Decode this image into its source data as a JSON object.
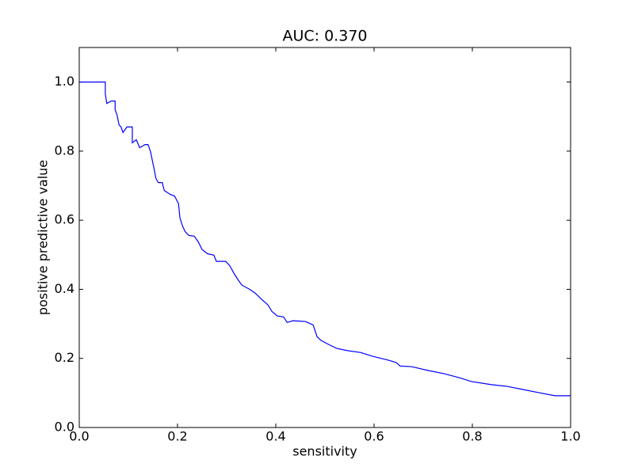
{
  "chart_data": {
    "type": "line",
    "title": "AUC: 0.370",
    "xlabel": "sensitivity",
    "ylabel": "positive predictive value",
    "xlim": [
      0,
      1
    ],
    "ylim": [
      0,
      1.1
    ],
    "xticks": [
      {
        "value": 0,
        "label": "0.0"
      },
      {
        "value": 0.2,
        "label": "0.2"
      },
      {
        "value": 0.4,
        "label": "0.4"
      },
      {
        "value": 0.6,
        "label": "0.6"
      },
      {
        "value": 0.8,
        "label": "0.8"
      },
      {
        "value": 1,
        "label": "1.0"
      }
    ],
    "yticks": [
      {
        "value": 0,
        "label": "0.0"
      },
      {
        "value": 0.2,
        "label": "0.2"
      },
      {
        "value": 0.4,
        "label": "0.4"
      },
      {
        "value": 0.6,
        "label": "0.6"
      },
      {
        "value": 0.8,
        "label": "0.8"
      },
      {
        "value": 1,
        "label": "1.0"
      }
    ],
    "color": "#0000ff",
    "x": [
      0,
      0.053,
      0.053,
      0.056,
      0.065,
      0.073,
      0.073,
      0.077,
      0.081,
      0.085,
      0.089,
      0.097,
      0.108,
      0.108,
      0.116,
      0.123,
      0.134,
      0.14,
      0.145,
      0.148,
      0.153,
      0.156,
      0.161,
      0.169,
      0.173,
      0.185,
      0.194,
      0.202,
      0.205,
      0.21,
      0.215,
      0.223,
      0.234,
      0.242,
      0.25,
      0.261,
      0.274,
      0.279,
      0.298,
      0.306,
      0.315,
      0.323,
      0.331,
      0.347,
      0.358,
      0.371,
      0.384,
      0.392,
      0.403,
      0.416,
      0.423,
      0.435,
      0.46,
      0.476,
      0.484,
      0.492,
      0.508,
      0.524,
      0.548,
      0.573,
      0.597,
      0.629,
      0.645,
      0.653,
      0.677,
      0.71,
      0.742,
      0.774,
      0.798,
      0.839,
      0.871,
      0.903,
      0.935,
      0.968,
      1.0
    ],
    "values": [
      1.0,
      1.0,
      0.966,
      0.938,
      0.945,
      0.945,
      0.92,
      0.904,
      0.876,
      0.87,
      0.854,
      0.87,
      0.87,
      0.824,
      0.833,
      0.81,
      0.819,
      0.819,
      0.799,
      0.778,
      0.744,
      0.721,
      0.709,
      0.709,
      0.686,
      0.675,
      0.67,
      0.648,
      0.606,
      0.584,
      0.568,
      0.556,
      0.554,
      0.538,
      0.515,
      0.503,
      0.499,
      0.481,
      0.481,
      0.469,
      0.446,
      0.428,
      0.412,
      0.4,
      0.389,
      0.371,
      0.355,
      0.336,
      0.323,
      0.32,
      0.304,
      0.309,
      0.307,
      0.297,
      0.263,
      0.252,
      0.24,
      0.229,
      0.222,
      0.217,
      0.206,
      0.195,
      0.188,
      0.178,
      0.176,
      0.165,
      0.156,
      0.144,
      0.133,
      0.124,
      0.119,
      0.11,
      0.101,
      0.092,
      0.092
    ]
  }
}
